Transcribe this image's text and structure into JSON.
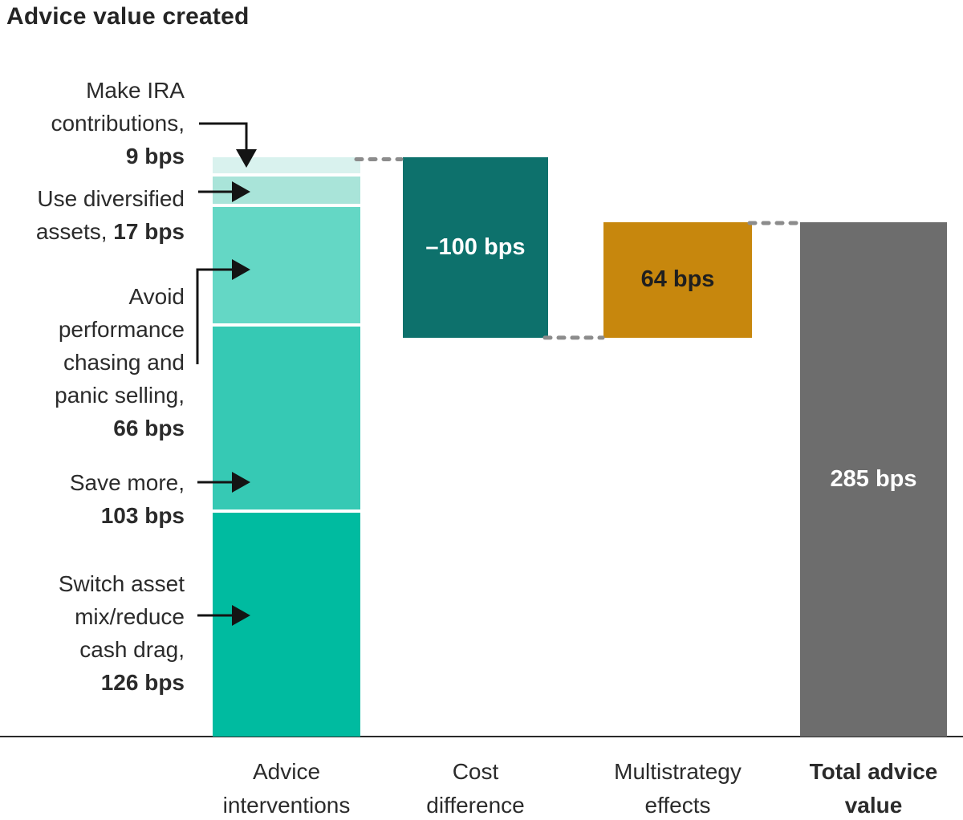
{
  "title": "Advice value created",
  "chart_data": {
    "type": "bar",
    "subtype": "waterfall",
    "unit": "bps",
    "title": "Advice value created",
    "xlabel": "",
    "ylabel": "",
    "ylim_bps": [
      0,
      321
    ],
    "grid": false,
    "legend": "none",
    "stacked_bar": {
      "category": "Advice interventions",
      "total_bps": 321,
      "segments_top_to_bottom": [
        {
          "name": "Make IRA contributions",
          "value_bps": 9,
          "color": "#d9f2ee"
        },
        {
          "name": "Use diversified assets",
          "value_bps": 17,
          "color": "#a9e4d9"
        },
        {
          "name": "Avoid performance chasing and panic selling",
          "value_bps": 66,
          "color": "#64d7c5"
        },
        {
          "name": "Save more",
          "value_bps": 103,
          "color": "#36c9b4"
        },
        {
          "name": "Switch asset mix/reduce cash drag",
          "value_bps": 126,
          "color": "#00bba0"
        }
      ]
    },
    "bars": [
      {
        "name": "Cost difference",
        "value_bps": -100,
        "label": "–100 bps",
        "color": "#0d716c",
        "label_color": "#ffffff",
        "is_total": false
      },
      {
        "name": "Multistrategy effects",
        "value_bps": 64,
        "label": "64 bps",
        "color": "#c7870d",
        "label_color": "#1f1f1f",
        "is_total": false
      },
      {
        "name": "Total advice value",
        "value_bps": 285,
        "label": "285 bps",
        "color": "#6d6d6d",
        "label_color": "#ffffff",
        "is_total": true
      }
    ],
    "categories": [
      {
        "lines": [
          "Advice",
          "interventions"
        ],
        "bold": false
      },
      {
        "lines": [
          "Cost",
          "difference"
        ],
        "bold": false
      },
      {
        "lines": [
          "Multistrategy",
          "effects"
        ],
        "bold": false
      },
      {
        "lines": [
          "Total advice",
          "value"
        ],
        "bold": true
      }
    ],
    "annotations": [
      {
        "name": "make-ira-contributions",
        "lines": [
          [
            {
              "t": "Make IRA",
              "b": false
            }
          ],
          [
            {
              "t": "contributions,",
              "b": false
            }
          ],
          [
            {
              "t": "9 bps",
              "b": true
            }
          ]
        ]
      },
      {
        "name": "use-diversified-assets",
        "lines": [
          [
            {
              "t": "Use diversified",
              "b": false
            }
          ],
          [
            {
              "t": "assets, ",
              "b": false
            },
            {
              "t": "17 bps",
              "b": true
            }
          ]
        ]
      },
      {
        "name": "avoid-performance-chasing",
        "lines": [
          [
            {
              "t": "Avoid",
              "b": false
            }
          ],
          [
            {
              "t": "performance",
              "b": false
            }
          ],
          [
            {
              "t": "chasing and",
              "b": false
            }
          ],
          [
            {
              "t": "panic selling,",
              "b": false
            }
          ],
          [
            {
              "t": "66 bps",
              "b": true
            }
          ]
        ]
      },
      {
        "name": "save-more",
        "lines": [
          [
            {
              "t": "Save more,",
              "b": false
            }
          ],
          [
            {
              "t": "103 bps",
              "b": true
            }
          ]
        ]
      },
      {
        "name": "switch-asset-mix",
        "lines": [
          [
            {
              "t": "Switch asset",
              "b": false
            }
          ],
          [
            {
              "t": "mix/reduce",
              "b": false
            }
          ],
          [
            {
              "t": "cash drag,",
              "b": false
            }
          ],
          [
            {
              "t": "126 bps",
              "b": true
            }
          ]
        ]
      }
    ],
    "colors": {
      "connector_dash": "#8c8c8c",
      "arrow": "#141414",
      "axis": "#2a2a2a",
      "text": "#2b2b2b",
      "segment_gap": "#ffffff"
    }
  }
}
